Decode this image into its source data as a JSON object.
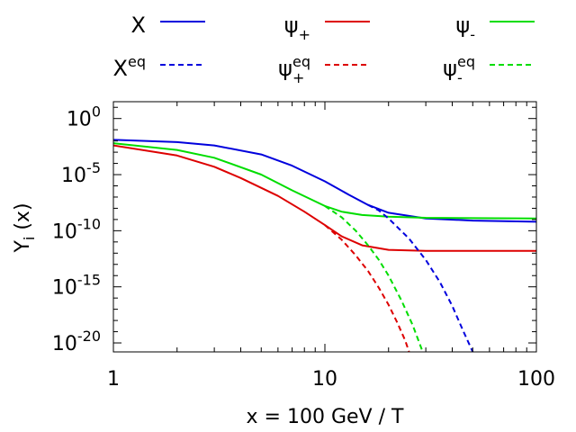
{
  "chart_data": {
    "type": "line",
    "title": "",
    "xlabel": "x = 100 GeV / T",
    "ylabel": {
      "base": "Y",
      "sub": "i",
      "suffix": " (x)"
    },
    "xscale": "log",
    "yscale": "log",
    "xlim": [
      1,
      100
    ],
    "ylim_exp": [
      -20.8,
      1.5
    ],
    "x_ticks": [
      {
        "value": 1,
        "label": "1"
      },
      {
        "value": 10,
        "label": "10"
      },
      {
        "value": 100,
        "label": "100"
      }
    ],
    "y_ticks": [
      {
        "exp": 0,
        "base": "10",
        "sup": "0"
      },
      {
        "exp": -5,
        "base": "10",
        "sup": "-5"
      },
      {
        "exp": -10,
        "base": "10",
        "sup": "-10"
      },
      {
        "exp": -15,
        "base": "10",
        "sup": "-15"
      },
      {
        "exp": -20,
        "base": "10",
        "sup": "-20"
      }
    ],
    "legend_position": "top",
    "series": [
      {
        "id": "X",
        "label": "X",
        "sup": "",
        "sub": "",
        "color": "#0000dd",
        "dash": "solid",
        "points": [
          [
            1,
            -1.9
          ],
          [
            2,
            -2.1
          ],
          [
            3,
            -2.4
          ],
          [
            5,
            -3.2
          ],
          [
            7,
            -4.2
          ],
          [
            10,
            -5.6
          ],
          [
            13,
            -6.8
          ],
          [
            16,
            -7.7
          ],
          [
            20,
            -8.4
          ],
          [
            30,
            -8.9
          ],
          [
            50,
            -9.1
          ],
          [
            100,
            -9.2
          ]
        ]
      },
      {
        "id": "psi_plus",
        "label": "ψ",
        "sup": "",
        "sub": "+",
        "color": "#dd0000",
        "dash": "solid",
        "points": [
          [
            1,
            -2.4
          ],
          [
            2,
            -3.3
          ],
          [
            3,
            -4.3
          ],
          [
            4,
            -5.3
          ],
          [
            6,
            -6.9
          ],
          [
            8,
            -8.3
          ],
          [
            10,
            -9.5
          ],
          [
            12,
            -10.5
          ],
          [
            15,
            -11.3
          ],
          [
            20,
            -11.7
          ],
          [
            30,
            -11.8
          ],
          [
            100,
            -11.8
          ]
        ]
      },
      {
        "id": "psi_minus",
        "label": "ψ",
        "sup": "",
        "sub": "-",
        "color": "#00dd00",
        "dash": "solid",
        "points": [
          [
            1,
            -2.2
          ],
          [
            2,
            -2.8
          ],
          [
            3,
            -3.5
          ],
          [
            5,
            -5.0
          ],
          [
            7,
            -6.4
          ],
          [
            10,
            -7.8
          ],
          [
            12,
            -8.3
          ],
          [
            15,
            -8.6
          ],
          [
            20,
            -8.75
          ],
          [
            30,
            -8.85
          ],
          [
            100,
            -8.9
          ]
        ]
      },
      {
        "id": "X_eq",
        "label": "X",
        "sup": "eq",
        "sub": "",
        "color": "#0000dd",
        "dash": "dashed",
        "points": [
          [
            16,
            -7.7
          ],
          [
            18,
            -8.2
          ],
          [
            20,
            -8.9
          ],
          [
            25,
            -10.7
          ],
          [
            30,
            -12.6
          ],
          [
            35,
            -14.6
          ],
          [
            40,
            -16.7
          ],
          [
            45,
            -18.9
          ],
          [
            50,
            -20.8
          ]
        ]
      },
      {
        "id": "psi_plus_eq",
        "label": "ψ",
        "sup": "eq",
        "sub": "+",
        "color": "#dd0000",
        "dash": "dashed",
        "points": [
          [
            10,
            -9.5
          ],
          [
            12,
            -10.8
          ],
          [
            14,
            -12.2
          ],
          [
            16,
            -13.6
          ],
          [
            18,
            -15.1
          ],
          [
            20,
            -16.6
          ],
          [
            22,
            -18.2
          ],
          [
            24,
            -19.8
          ],
          [
            25,
            -20.8
          ]
        ]
      },
      {
        "id": "psi_minus_eq",
        "label": "ψ",
        "sup": "eq",
        "sub": "-",
        "color": "#00dd00",
        "dash": "dashed",
        "points": [
          [
            10,
            -7.8
          ],
          [
            12,
            -8.8
          ],
          [
            14,
            -10.0
          ],
          [
            16,
            -11.3
          ],
          [
            18,
            -12.6
          ],
          [
            20,
            -14.0
          ],
          [
            23,
            -16.2
          ],
          [
            26,
            -18.4
          ],
          [
            29,
            -20.8
          ]
        ]
      }
    ]
  }
}
